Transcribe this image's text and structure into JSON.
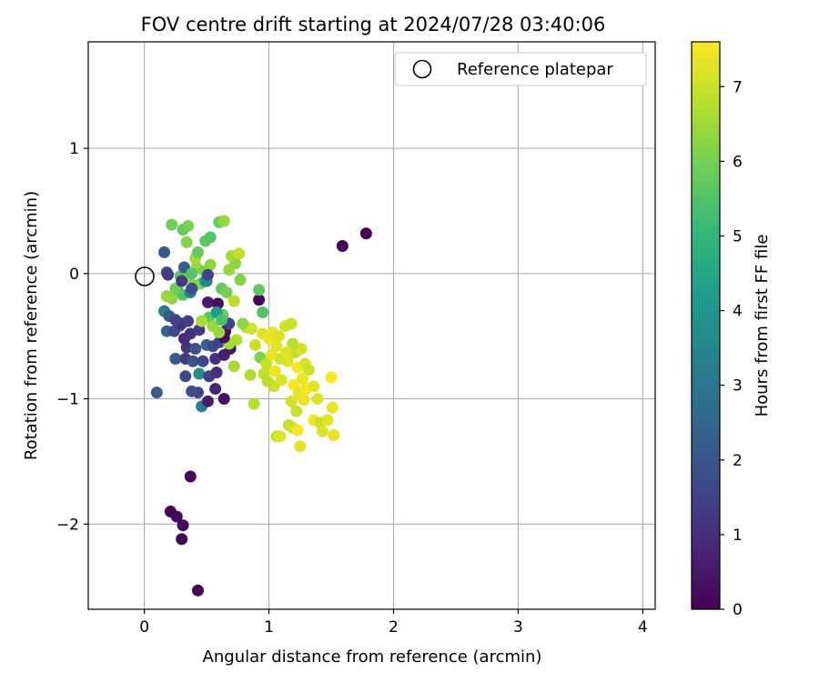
{
  "chart_data": {
    "type": "scatter",
    "title": "FOV centre drift starting at 2024/07/28 03:40:06",
    "xlabel": "Angular distance from reference (arcmin)",
    "ylabel": "Rotation from reference (arcmin)",
    "xlim": [
      -0.45,
      4.1
    ],
    "ylim": [
      -2.68,
      1.85
    ],
    "x_ticks": [
      0,
      1,
      2,
      3,
      4
    ],
    "x_tick_labels": [
      "0",
      "1",
      "2",
      "3",
      "4"
    ],
    "y_ticks": [
      -2,
      -1,
      0,
      1
    ],
    "y_tick_labels": [
      "−2",
      "−1",
      "0",
      "1"
    ],
    "grid": true,
    "legend": {
      "placement": "top-right",
      "entries": [
        "Reference platepar"
      ]
    },
    "colormap": "viridis",
    "colorbar": {
      "label": "Hours from first FF file",
      "range": [
        0,
        7.6
      ],
      "ticks": [
        0,
        1,
        2,
        3,
        4,
        5,
        6,
        7
      ],
      "tick_labels": [
        "0",
        "1",
        "2",
        "3",
        "4",
        "5",
        "6",
        "7"
      ]
    },
    "reference_point": {
      "x": 0,
      "y": 0,
      "label": "Reference platepar"
    },
    "points": [
      {
        "x": 0.43,
        "y": -2.53,
        "c": 0.05
      },
      {
        "x": 0.3,
        "y": -2.12,
        "c": 0.1
      },
      {
        "x": 0.31,
        "y": -2.01,
        "c": 0.12
      },
      {
        "x": 0.26,
        "y": -1.94,
        "c": 0.15
      },
      {
        "x": 0.21,
        "y": -1.9,
        "c": 0.1
      },
      {
        "x": 0.37,
        "y": -1.62,
        "c": 0.2
      },
      {
        "x": 1.59,
        "y": 0.22,
        "c": 0.1
      },
      {
        "x": 1.78,
        "y": 0.32,
        "c": 0.05
      },
      {
        "x": 0.1,
        "y": -0.95,
        "c": 2.2
      },
      {
        "x": 0.46,
        "y": -1.06,
        "c": 3.3
      },
      {
        "x": 0.51,
        "y": -1.02,
        "c": 0.6
      },
      {
        "x": 0.64,
        "y": -1.0,
        "c": 0.4
      },
      {
        "x": 0.57,
        "y": -0.92,
        "c": 0.8
      },
      {
        "x": 0.43,
        "y": -0.95,
        "c": 1.5
      },
      {
        "x": 0.38,
        "y": -0.94,
        "c": 1.8
      },
      {
        "x": 0.33,
        "y": -0.82,
        "c": 1.7
      },
      {
        "x": 0.44,
        "y": -0.8,
        "c": 3.7
      },
      {
        "x": 0.52,
        "y": -0.82,
        "c": 1.4
      },
      {
        "x": 0.58,
        "y": -0.79,
        "c": 1.0
      },
      {
        "x": 0.25,
        "y": -0.68,
        "c": 2.1
      },
      {
        "x": 0.33,
        "y": -0.68,
        "c": 1.3
      },
      {
        "x": 0.39,
        "y": -0.7,
        "c": 2.0
      },
      {
        "x": 0.47,
        "y": -0.7,
        "c": 1.6
      },
      {
        "x": 0.57,
        "y": -0.68,
        "c": 1.1
      },
      {
        "x": 0.64,
        "y": -0.65,
        "c": 0.7
      },
      {
        "x": 0.69,
        "y": -0.6,
        "c": 0.5
      },
      {
        "x": 0.34,
        "y": -0.59,
        "c": 1.2
      },
      {
        "x": 0.41,
        "y": -0.6,
        "c": 1.9
      },
      {
        "x": 0.5,
        "y": -0.57,
        "c": 2.4
      },
      {
        "x": 0.55,
        "y": -0.58,
        "c": 1.7
      },
      {
        "x": 0.6,
        "y": -0.55,
        "c": 1.5
      },
      {
        "x": 0.32,
        "y": -0.52,
        "c": 0.9
      },
      {
        "x": 0.37,
        "y": -0.48,
        "c": 1.1
      },
      {
        "x": 0.44,
        "y": -0.45,
        "c": 1.3
      },
      {
        "x": 0.65,
        "y": -0.46,
        "c": 0.3
      },
      {
        "x": 0.68,
        "y": -0.4,
        "c": 1.5
      },
      {
        "x": 0.28,
        "y": -0.42,
        "c": 2.6
      },
      {
        "x": 0.18,
        "y": -0.46,
        "c": 2.5
      },
      {
        "x": 0.24,
        "y": -0.46,
        "c": 1.7
      },
      {
        "x": 0.3,
        "y": -0.4,
        "c": 1.0
      },
      {
        "x": 0.35,
        "y": -0.38,
        "c": 1.4
      },
      {
        "x": 0.16,
        "y": -0.3,
        "c": 3.1
      },
      {
        "x": 0.2,
        "y": -0.34,
        "c": 2.2
      },
      {
        "x": 0.25,
        "y": -0.37,
        "c": 1.5
      },
      {
        "x": 0.51,
        "y": -0.23,
        "c": 0.6
      },
      {
        "x": 0.59,
        "y": -0.24,
        "c": 0.3
      },
      {
        "x": 0.92,
        "y": -0.21,
        "c": 0.2
      },
      {
        "x": 0.92,
        "y": -0.13,
        "c": 5.7
      },
      {
        "x": 0.95,
        "y": -0.31,
        "c": 5.5
      },
      {
        "x": 0.63,
        "y": -0.33,
        "c": 5.9
      },
      {
        "x": 0.52,
        "y": -0.35,
        "c": 5.6
      },
      {
        "x": 0.58,
        "y": -0.31,
        "c": 4.2
      },
      {
        "x": 0.46,
        "y": -0.38,
        "c": 6.6
      },
      {
        "x": 0.55,
        "y": -0.42,
        "c": 6.4
      },
      {
        "x": 0.62,
        "y": -0.37,
        "c": 5.4
      },
      {
        "x": 0.27,
        "y": -0.14,
        "c": 5.2
      },
      {
        "x": 0.22,
        "y": -0.2,
        "c": 6.3
      },
      {
        "x": 0.31,
        "y": -0.17,
        "c": 5.5
      },
      {
        "x": 0.37,
        "y": -0.15,
        "c": 3.2
      },
      {
        "x": 0.4,
        "y": -0.1,
        "c": 5.8
      },
      {
        "x": 0.45,
        "y": -0.08,
        "c": 6.1
      },
      {
        "x": 0.5,
        "y": -0.06,
        "c": 2.6
      },
      {
        "x": 0.25,
        "y": -0.12,
        "c": 5.9
      },
      {
        "x": 0.18,
        "y": -0.18,
        "c": 6.4
      },
      {
        "x": 0.29,
        "y": -0.02,
        "c": 5.6
      },
      {
        "x": 0.36,
        "y": -0.03,
        "c": 6.2
      },
      {
        "x": 0.42,
        "y": 0.05,
        "c": 6.4
      },
      {
        "x": 0.48,
        "y": 0.02,
        "c": 6.0
      },
      {
        "x": 0.53,
        "y": 0.07,
        "c": 6.3
      },
      {
        "x": 0.62,
        "y": -0.12,
        "c": 5.7
      },
      {
        "x": 0.66,
        "y": -0.15,
        "c": 6.0
      },
      {
        "x": 0.72,
        "y": -0.22,
        "c": 6.8
      },
      {
        "x": 0.77,
        "y": -0.05,
        "c": 6.2
      },
      {
        "x": 0.68,
        "y": 0.03,
        "c": 6.4
      },
      {
        "x": 0.73,
        "y": 0.08,
        "c": 6.3
      },
      {
        "x": 0.7,
        "y": 0.14,
        "c": 6.5
      },
      {
        "x": 0.76,
        "y": 0.16,
        "c": 6.9
      },
      {
        "x": 0.32,
        "y": 0.05,
        "c": 2.2
      },
      {
        "x": 0.38,
        "y": 0.0,
        "c": 5.5
      },
      {
        "x": 0.41,
        "y": 0.12,
        "c": 6.5
      },
      {
        "x": 0.43,
        "y": 0.17,
        "c": 5.8
      },
      {
        "x": 0.49,
        "y": 0.26,
        "c": 5.7
      },
      {
        "x": 0.53,
        "y": 0.29,
        "c": 5.6
      },
      {
        "x": 0.6,
        "y": 0.41,
        "c": 5.8
      },
      {
        "x": 0.64,
        "y": 0.42,
        "c": 6.4
      },
      {
        "x": 0.22,
        "y": 0.39,
        "c": 5.9
      },
      {
        "x": 0.31,
        "y": 0.35,
        "c": 5.8
      },
      {
        "x": 0.35,
        "y": 0.38,
        "c": 6.0
      },
      {
        "x": 0.34,
        "y": 0.25,
        "c": 6.2
      },
      {
        "x": 0.18,
        "y": 0.01,
        "c": 2.2
      },
      {
        "x": 0.16,
        "y": 0.17,
        "c": 2.0
      },
      {
        "x": 0.19,
        "y": -0.01,
        "c": 1.4
      },
      {
        "x": 0.3,
        "y": -0.06,
        "c": 1.3
      },
      {
        "x": 0.38,
        "y": -0.12,
        "c": 1.8
      },
      {
        "x": 0.49,
        "y": -0.06,
        "c": 3.6
      },
      {
        "x": 0.51,
        "y": -0.01,
        "c": 1.5
      },
      {
        "x": 0.72,
        "y": -0.74,
        "c": 6.6
      },
      {
        "x": 0.88,
        "y": -1.04,
        "c": 6.8
      },
      {
        "x": 0.85,
        "y": -0.81,
        "c": 6.7
      },
      {
        "x": 0.96,
        "y": -0.8,
        "c": 6.9
      },
      {
        "x": 0.93,
        "y": -0.67,
        "c": 6.1
      },
      {
        "x": 0.89,
        "y": -0.57,
        "c": 7.0
      },
      {
        "x": 0.95,
        "y": -0.48,
        "c": 7.2
      },
      {
        "x": 1.0,
        "y": -0.52,
        "c": 7.5
      },
      {
        "x": 1.03,
        "y": -0.47,
        "c": 7.3
      },
      {
        "x": 1.08,
        "y": -0.5,
        "c": 7.2
      },
      {
        "x": 1.13,
        "y": -0.42,
        "c": 7.1
      },
      {
        "x": 1.18,
        "y": -0.4,
        "c": 7.0
      },
      {
        "x": 1.06,
        "y": -0.58,
        "c": 7.3
      },
      {
        "x": 1.02,
        "y": -0.65,
        "c": 7.4
      },
      {
        "x": 0.98,
        "y": -0.72,
        "c": 7.0
      },
      {
        "x": 1.05,
        "y": -0.78,
        "c": 7.4
      },
      {
        "x": 1.1,
        "y": -0.85,
        "c": 7.2
      },
      {
        "x": 1.04,
        "y": -0.9,
        "c": 7.0
      },
      {
        "x": 0.99,
        "y": -0.86,
        "c": 6.8
      },
      {
        "x": 1.15,
        "y": -0.7,
        "c": 7.3
      },
      {
        "x": 1.21,
        "y": -0.63,
        "c": 6.9
      },
      {
        "x": 1.26,
        "y": -0.6,
        "c": 7.1
      },
      {
        "x": 1.19,
        "y": -0.56,
        "c": 6.8
      },
      {
        "x": 1.23,
        "y": -0.75,
        "c": 7.5
      },
      {
        "x": 1.29,
        "y": -0.72,
        "c": 7.2
      },
      {
        "x": 1.32,
        "y": -0.77,
        "c": 7.0
      },
      {
        "x": 1.27,
        "y": -0.84,
        "c": 7.4
      },
      {
        "x": 1.2,
        "y": -0.89,
        "c": 7.6
      },
      {
        "x": 1.24,
        "y": -0.95,
        "c": 7.3
      },
      {
        "x": 1.18,
        "y": -1.02,
        "c": 7.1
      },
      {
        "x": 1.3,
        "y": -0.92,
        "c": 7.5
      },
      {
        "x": 1.36,
        "y": -0.9,
        "c": 7.3
      },
      {
        "x": 1.39,
        "y": -1.0,
        "c": 7.2
      },
      {
        "x": 1.28,
        "y": -1.01,
        "c": 7.4
      },
      {
        "x": 1.22,
        "y": -1.1,
        "c": 7.0
      },
      {
        "x": 1.16,
        "y": -1.21,
        "c": 6.9
      },
      {
        "x": 1.19,
        "y": -1.23,
        "c": 7.1
      },
      {
        "x": 1.23,
        "y": -1.25,
        "c": 7.5
      },
      {
        "x": 1.06,
        "y": -1.3,
        "c": 7.0
      },
      {
        "x": 1.09,
        "y": -1.3,
        "c": 7.2
      },
      {
        "x": 1.25,
        "y": -1.38,
        "c": 7.3
      },
      {
        "x": 1.36,
        "y": -1.17,
        "c": 7.5
      },
      {
        "x": 1.41,
        "y": -1.19,
        "c": 7.0
      },
      {
        "x": 1.43,
        "y": -1.26,
        "c": 7.2
      },
      {
        "x": 1.47,
        "y": -1.17,
        "c": 7.3
      },
      {
        "x": 1.51,
        "y": -1.07,
        "c": 7.4
      },
      {
        "x": 1.52,
        "y": -1.29,
        "c": 7.3
      },
      {
        "x": 1.5,
        "y": -0.83,
        "c": 7.6
      },
      {
        "x": 1.09,
        "y": -0.68,
        "c": 7.1
      },
      {
        "x": 1.14,
        "y": -0.63,
        "c": 7.2
      },
      {
        "x": 0.82,
        "y": -0.43,
        "c": 6.8
      },
      {
        "x": 0.86,
        "y": -0.44,
        "c": 7.1
      },
      {
        "x": 0.79,
        "y": -0.4,
        "c": 6.3
      },
      {
        "x": 0.74,
        "y": -0.53,
        "c": 6.7
      },
      {
        "x": 0.68,
        "y": -0.56,
        "c": 6.6
      },
      {
        "x": 0.64,
        "y": -0.51,
        "c": 0.2
      },
      {
        "x": 0.6,
        "y": -0.47,
        "c": 6.4
      }
    ]
  }
}
